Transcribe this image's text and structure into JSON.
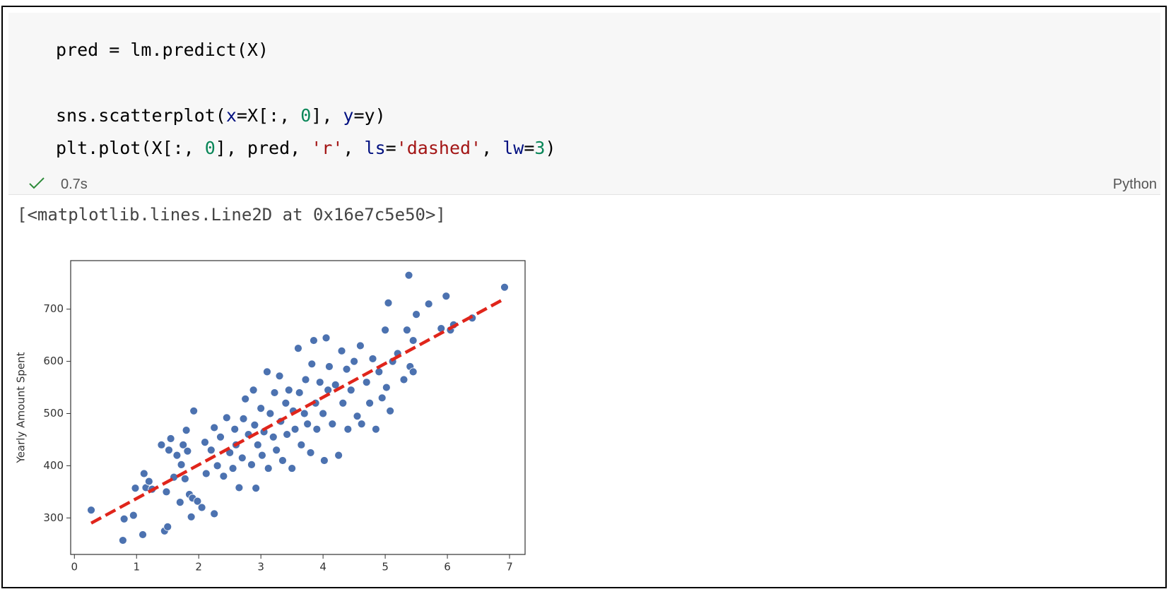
{
  "code": {
    "lines": [
      [
        {
          "text": "pred = lm.predict(X)",
          "color": "#000000"
        }
      ],
      [
        {
          "text": "sns.scatterplot(",
          "color": "#000000"
        },
        {
          "text": "x",
          "color": "#001080"
        },
        {
          "text": "=X[:, ",
          "color": "#000000"
        },
        {
          "text": "0",
          "color": "#098658"
        },
        {
          "text": "], ",
          "color": "#000000"
        },
        {
          "text": "y",
          "color": "#001080"
        },
        {
          "text": "=y)",
          "color": "#000000"
        }
      ],
      [
        {
          "text": "plt.plot(X[:, ",
          "color": "#000000"
        },
        {
          "text": "0",
          "color": "#098658"
        },
        {
          "text": "], pred, ",
          "color": "#000000"
        },
        {
          "text": "'r'",
          "color": "#a31515"
        },
        {
          "text": ", ",
          "color": "#000000"
        },
        {
          "text": "ls",
          "color": "#001080"
        },
        {
          "text": "=",
          "color": "#000000"
        },
        {
          "text": "'dashed'",
          "color": "#a31515"
        },
        {
          "text": ", ",
          "color": "#000000"
        },
        {
          "text": "lw",
          "color": "#001080"
        },
        {
          "text": "=",
          "color": "#000000"
        },
        {
          "text": "3",
          "color": "#098658"
        },
        {
          "text": ")",
          "color": "#000000"
        }
      ]
    ]
  },
  "status": {
    "time": "0.7s",
    "language": "Python"
  },
  "output": "[<matplotlib.lines.Line2D at 0x16e7c5e50>]",
  "chart_data": {
    "type": "scatter",
    "y_label": "Yearly Amount Spent",
    "xlim": [
      -0.06,
      7.25
    ],
    "ylim": [
      230,
      793
    ],
    "xticks": [
      0,
      1,
      2,
      3,
      4,
      5,
      6,
      7
    ],
    "yticks": [
      300,
      400,
      500,
      600,
      700
    ],
    "grid": false,
    "series": [
      {
        "type": "scatter",
        "color": "#4c72b0",
        "x": [
          0.27,
          0.78,
          0.8,
          0.95,
          0.98,
          1.1,
          1.12,
          1.15,
          1.2,
          1.25,
          1.4,
          1.45,
          1.5,
          1.48,
          1.55,
          1.52,
          1.6,
          1.65,
          1.7,
          1.72,
          1.75,
          1.78,
          1.8,
          1.82,
          1.85,
          1.88,
          1.9,
          1.92,
          1.98,
          2.05,
          2.1,
          2.12,
          2.2,
          2.25,
          2.25,
          2.3,
          2.35,
          2.4,
          2.45,
          2.5,
          2.55,
          2.58,
          2.6,
          2.65,
          2.7,
          2.72,
          2.75,
          2.8,
          2.85,
          2.88,
          2.9,
          2.92,
          2.95,
          3.0,
          3.02,
          3.05,
          3.1,
          3.12,
          3.15,
          3.2,
          3.22,
          3.25,
          3.3,
          3.32,
          3.35,
          3.4,
          3.42,
          3.45,
          3.5,
          3.52,
          3.55,
          3.6,
          3.62,
          3.65,
          3.7,
          3.72,
          3.75,
          3.8,
          3.82,
          3.85,
          3.88,
          3.9,
          3.95,
          4.0,
          4.02,
          4.05,
          4.08,
          4.1,
          4.15,
          4.2,
          4.25,
          4.3,
          4.32,
          4.38,
          4.4,
          4.45,
          4.5,
          4.55,
          4.6,
          4.62,
          4.7,
          4.75,
          4.8,
          4.85,
          4.9,
          4.95,
          5.0,
          5.02,
          5.05,
          5.08,
          5.12,
          5.2,
          5.3,
          5.35,
          5.38,
          5.4,
          5.45,
          5.45,
          5.5,
          5.7,
          5.9,
          5.98,
          6.05,
          6.1,
          6.4,
          6.92
        ],
        "values": [
          315,
          257,
          298,
          305,
          357,
          268,
          385,
          358,
          370,
          355,
          440,
          275,
          283,
          350,
          452,
          430,
          378,
          420,
          330,
          402,
          440,
          375,
          468,
          428,
          345,
          302,
          338,
          505,
          332,
          320,
          445,
          385,
          430,
          308,
          473,
          400,
          455,
          380,
          492,
          425,
          395,
          470,
          440,
          358,
          415,
          490,
          528,
          460,
          402,
          545,
          478,
          357,
          440,
          510,
          420,
          465,
          580,
          395,
          500,
          455,
          540,
          430,
          572,
          485,
          410,
          520,
          460,
          545,
          395,
          505,
          470,
          625,
          540,
          440,
          500,
          565,
          480,
          425,
          595,
          640,
          520,
          470,
          560,
          500,
          410,
          645,
          545,
          590,
          480,
          555,
          420,
          620,
          520,
          585,
          470,
          545,
          600,
          495,
          630,
          480,
          560,
          520,
          605,
          470,
          580,
          530,
          660,
          550,
          712,
          505,
          600,
          615,
          565,
          660,
          765,
          590,
          640,
          580,
          690,
          710,
          663,
          725,
          660,
          670,
          683,
          742
        ]
      },
      {
        "type": "line",
        "color": "#e0251b",
        "line_style": "dashed",
        "x": [
          0.27,
          6.92
        ],
        "values": [
          290,
          720
        ]
      }
    ]
  }
}
